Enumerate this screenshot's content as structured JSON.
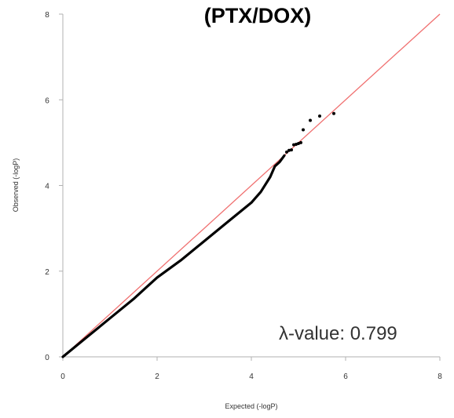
{
  "chart_data": {
    "type": "scatter",
    "title": "(PTX/DOX)",
    "xlabel": "Expected (-logP)",
    "ylabel": "Observed (-logP)",
    "xlim": [
      0,
      8
    ],
    "ylim": [
      0,
      8
    ],
    "x_ticks": [
      "0",
      "2",
      "4",
      "6",
      "8"
    ],
    "y_ticks": [
      "0",
      "2",
      "4",
      "6",
      "8"
    ],
    "grid": false,
    "legend": "none",
    "annotation": "λ-value: 0.799",
    "reference_line": {
      "from": [
        0,
        0
      ],
      "to": [
        8,
        8
      ],
      "color": "#f07070"
    },
    "point_color": "#000000",
    "curve": {
      "x": [
        0,
        0.5,
        1,
        1.5,
        1.75,
        2,
        2.5,
        3,
        3.5,
        4,
        4.2,
        4.4,
        4.5,
        4.6,
        4.7
      ],
      "y": [
        0,
        0.45,
        0.9,
        1.35,
        1.6,
        1.85,
        2.25,
        2.7,
        3.15,
        3.6,
        3.85,
        4.2,
        4.45,
        4.55,
        4.7
      ]
    },
    "points": [
      {
        "x": 4.75,
        "y": 4.78
      },
      {
        "x": 4.8,
        "y": 4.82
      },
      {
        "x": 4.85,
        "y": 4.83
      },
      {
        "x": 4.9,
        "y": 4.95
      },
      {
        "x": 4.95,
        "y": 4.96
      },
      {
        "x": 5.0,
        "y": 4.98
      },
      {
        "x": 5.05,
        "y": 5.0
      },
      {
        "x": 5.1,
        "y": 5.3
      },
      {
        "x": 5.25,
        "y": 5.52
      },
      {
        "x": 5.45,
        "y": 5.62
      },
      {
        "x": 5.75,
        "y": 5.68
      }
    ]
  }
}
